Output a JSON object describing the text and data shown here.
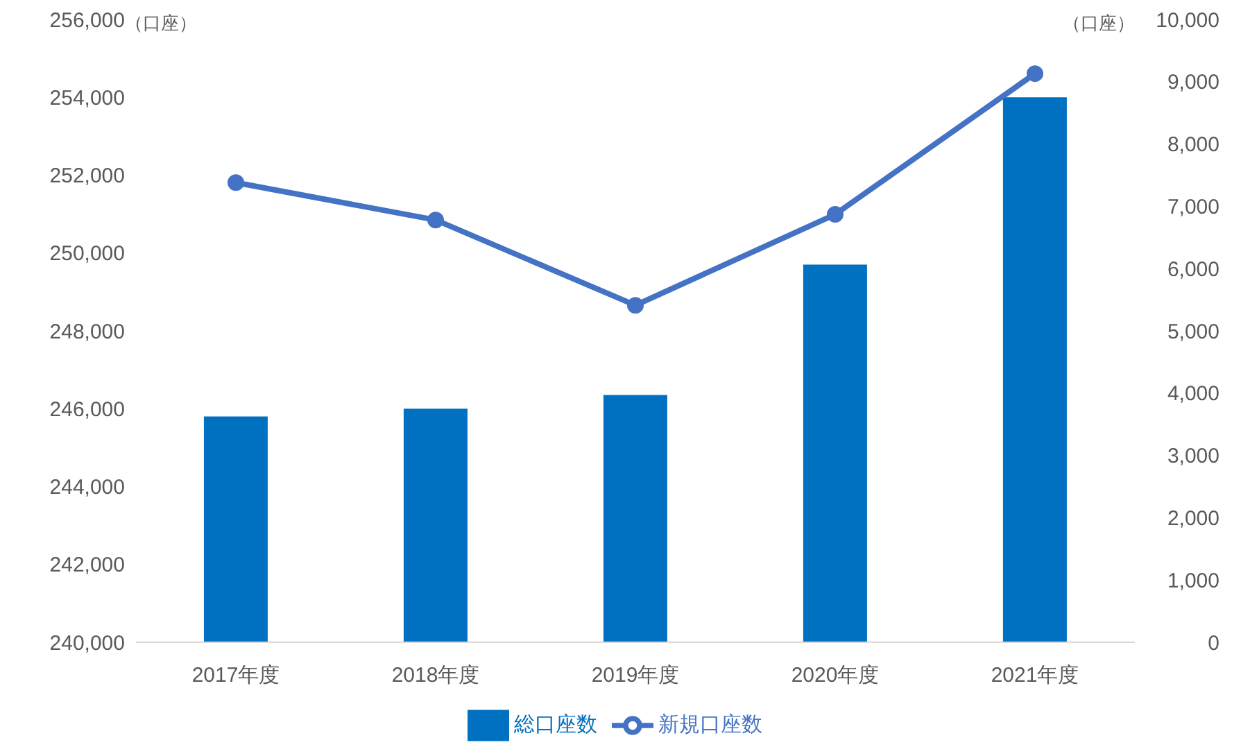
{
  "chart_data": {
    "type": "bar",
    "categories": [
      "2017年度",
      "2018年度",
      "2019年度",
      "2020年度",
      "2021年度"
    ],
    "series": [
      {
        "name": "総口座数",
        "color": "#0070c0",
        "values": [
          245800,
          246000,
          246350,
          249700,
          254000
        ]
      },
      {
        "name": "新規口座数",
        "type": "line",
        "axis": "y2",
        "color": "#4472c4",
        "values": [
          7380,
          6780,
          5410,
          6870,
          9130
        ]
      }
    ],
    "ylabel": "（口座）",
    "y2label": "（口座）",
    "ylim": [
      240000,
      256000
    ],
    "yticks": [
      {
        "value": 240000,
        "label": "240,000"
      },
      {
        "value": 242000,
        "label": "242,000"
      },
      {
        "value": 244000,
        "label": "244,000"
      },
      {
        "value": 246000,
        "label": "246,000"
      },
      {
        "value": 248000,
        "label": "248,000"
      },
      {
        "value": 250000,
        "label": "250,000"
      },
      {
        "value": 252000,
        "label": "252,000"
      },
      {
        "value": 254000,
        "label": "254,000"
      },
      {
        "value": 256000,
        "label": "256,000"
      }
    ],
    "y2lim": [
      0,
      10000
    ],
    "y2ticks": [
      0,
      {
        "value": 1000,
        "label": "1,000"
      },
      {
        "value": 2000,
        "label": "2,000"
      },
      {
        "value": 3000,
        "label": "3,000"
      },
      {
        "value": 4000,
        "label": "4,000"
      },
      {
        "value": 5000,
        "label": "5,000"
      },
      {
        "value": 6000,
        "label": "6,000"
      },
      {
        "value": 7000,
        "label": "7,000"
      },
      {
        "value": 8000,
        "label": "8,000"
      },
      {
        "value": 9000,
        "label": "9,000"
      },
      {
        "value": 10000,
        "label": "10,000"
      }
    ],
    "legend": "bottom",
    "marker": "circle"
  }
}
